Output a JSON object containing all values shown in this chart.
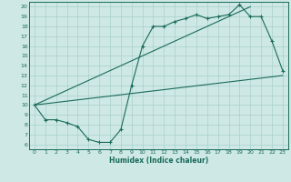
{
  "xlabel": "Humidex (Indice chaleur)",
  "xlim": [
    -0.5,
    23.5
  ],
  "ylim": [
    5.5,
    20.5
  ],
  "xticks": [
    0,
    1,
    2,
    3,
    4,
    5,
    6,
    7,
    8,
    9,
    10,
    11,
    12,
    13,
    14,
    15,
    16,
    17,
    18,
    19,
    20,
    21,
    22,
    23
  ],
  "yticks": [
    6,
    7,
    8,
    9,
    10,
    11,
    12,
    13,
    14,
    15,
    16,
    17,
    18,
    19,
    20
  ],
  "bg_color": "#cde8e5",
  "line_color": "#1a6b5a",
  "grid_color": "#aad0cc",
  "line1_x": [
    0,
    20
  ],
  "line1_y": [
    10,
    20
  ],
  "line2_x": [
    0,
    1,
    2,
    3,
    4,
    5,
    6,
    7,
    8,
    9,
    10,
    11,
    12,
    13,
    14,
    15,
    16,
    17,
    18,
    19,
    20,
    21,
    22,
    23
  ],
  "line2_y": [
    10,
    8.5,
    8.5,
    8.2,
    7.8,
    6.5,
    6.2,
    6.2,
    7.5,
    12.0,
    16.0,
    18.0,
    18.0,
    18.5,
    18.8,
    19.2,
    18.8,
    19.0,
    19.2,
    20.2,
    19.0,
    19.0,
    16.5,
    13.5
  ],
  "line3_x": [
    0,
    23
  ],
  "line3_y": [
    10,
    13.0
  ]
}
